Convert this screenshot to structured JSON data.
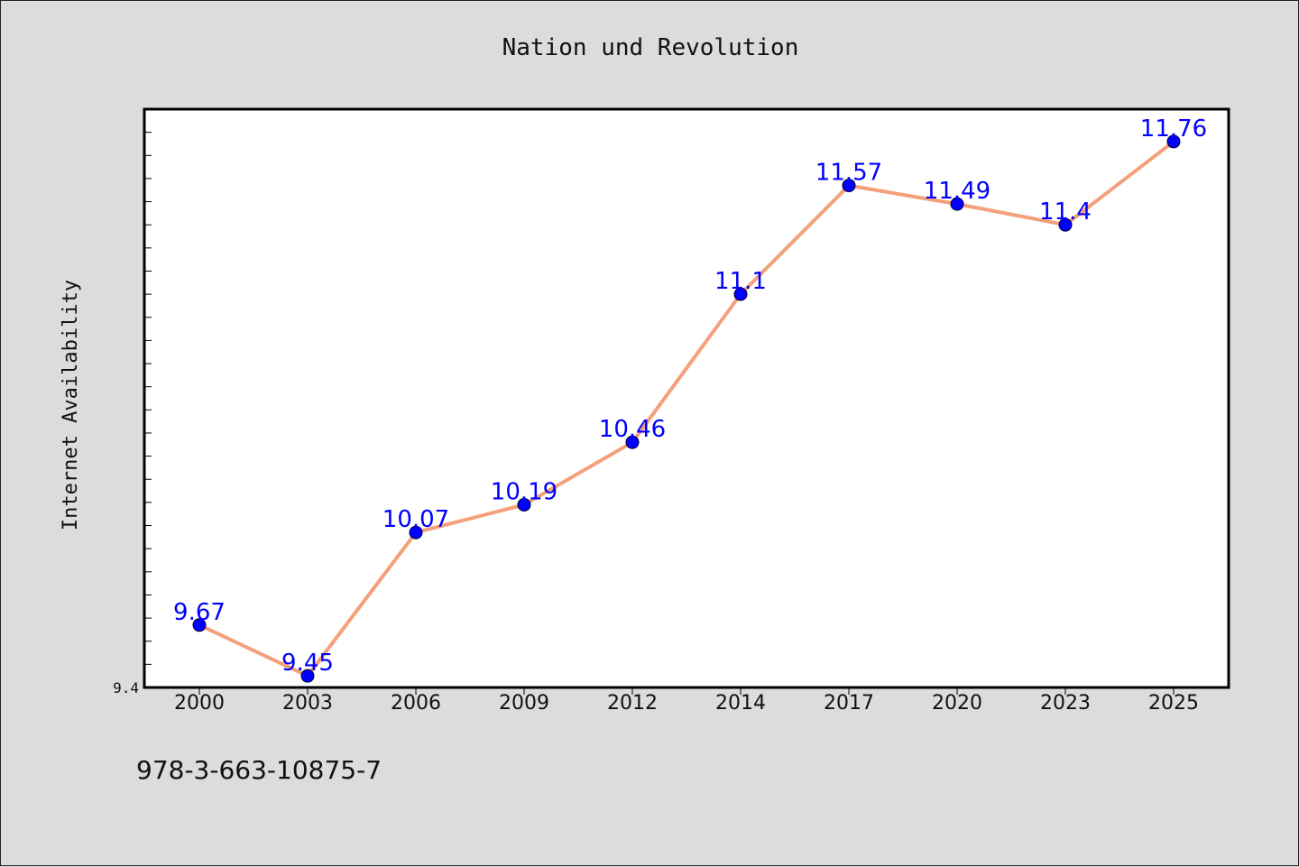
{
  "chart_data": {
    "type": "line",
    "title": "Nation und Revolution",
    "xlabel": "",
    "ylabel": "Internet Availability",
    "categories": [
      "2000",
      "2003",
      "2006",
      "2009",
      "2012",
      "2014",
      "2017",
      "2020",
      "2023",
      "2025"
    ],
    "series": [
      {
        "values": [
          9.67,
          9.45,
          10.07,
          10.19,
          10.46,
          11.1,
          11.57,
          11.49,
          11.4,
          11.76
        ],
        "labels": [
          "9.67",
          "9.45",
          "10.07",
          "10.19",
          "10.46",
          "11.1",
          "11.57",
          "11.49",
          "11.4",
          "11.76"
        ],
        "line_color": "#f4a07a",
        "marker_color": "#0000ff"
      }
    ],
    "ylim": [
      9.4,
      11.9
    ],
    "yticks_labeled": [
      "9.4"
    ],
    "grid": false,
    "legend": "none"
  },
  "footnote": "978-3-663-10875-7"
}
